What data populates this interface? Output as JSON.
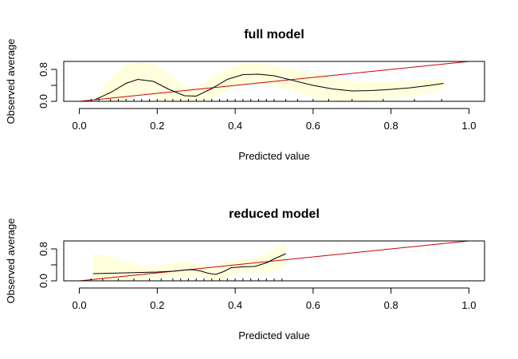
{
  "colors": {
    "band": "#ffffdd",
    "smooth": "#000000",
    "diagonal": "#cc0000",
    "axis": "#000000"
  },
  "chart_data": [
    {
      "type": "line",
      "title": "full model",
      "xlabel": "Predicted value",
      "ylabel": "Observed average",
      "xlim": [
        -0.04,
        1.04
      ],
      "ylim": [
        0,
        1
      ],
      "xticks": [
        0.0,
        0.2,
        0.4,
        0.6,
        0.8,
        1.0
      ],
      "xtick_labels": [
        "0.0",
        "0.2",
        "0.4",
        "0.6",
        "0.8",
        "1.0"
      ],
      "yticks": [
        0.0,
        0.4,
        0.8
      ],
      "ytick_labels": [
        "0.0",
        "0.8"
      ],
      "grid": false,
      "smooth": {
        "x": [
          0.04,
          0.08,
          0.12,
          0.15,
          0.19,
          0.23,
          0.27,
          0.3,
          0.34,
          0.38,
          0.42,
          0.46,
          0.5,
          0.55,
          0.6,
          0.65,
          0.7,
          0.75,
          0.8,
          0.85,
          0.9,
          0.935
        ],
        "y": [
          0.04,
          0.22,
          0.45,
          0.55,
          0.5,
          0.3,
          0.14,
          0.13,
          0.32,
          0.55,
          0.67,
          0.68,
          0.64,
          0.52,
          0.4,
          0.31,
          0.26,
          0.27,
          0.3,
          0.34,
          0.4,
          0.45
        ]
      },
      "band": {
        "x": [
          0.04,
          0.08,
          0.12,
          0.15,
          0.19,
          0.23,
          0.27,
          0.3,
          0.34,
          0.38,
          0.42,
          0.46,
          0.5,
          0.55,
          0.6,
          0.65,
          0.7,
          0.75,
          0.8,
          0.85,
          0.9,
          0.935
        ],
        "upper": [
          0.05,
          0.6,
          0.92,
          0.98,
          0.95,
          0.7,
          0.38,
          0.32,
          0.6,
          0.84,
          0.94,
          0.95,
          0.9,
          0.82,
          0.72,
          0.6,
          0.52,
          0.5,
          0.5,
          0.52,
          0.55,
          0.57
        ],
        "lower": [
          0.0,
          0.0,
          0.05,
          0.18,
          0.12,
          0.0,
          0.0,
          0.0,
          0.05,
          0.28,
          0.42,
          0.45,
          0.38,
          0.25,
          0.1,
          0.02,
          0.0,
          0.02,
          0.06,
          0.12,
          0.2,
          0.3
        ]
      },
      "diagonal": {
        "x": [
          -0.04,
          1.04
        ],
        "y": [
          -0.04,
          1.04
        ]
      },
      "rug": [
        0.03,
        0.05,
        0.08,
        0.1,
        0.12,
        0.14,
        0.16,
        0.18,
        0.2,
        0.22,
        0.24,
        0.26,
        0.28,
        0.3,
        0.32,
        0.34,
        0.36,
        0.38,
        0.4,
        0.42,
        0.44,
        0.46,
        0.48,
        0.5,
        0.53,
        0.56,
        0.6,
        0.64,
        0.7,
        0.78,
        0.86,
        0.93
      ]
    },
    {
      "type": "line",
      "title": "reduced model",
      "xlabel": "Predicted value",
      "ylabel": "Observed average",
      "xlim": [
        -0.04,
        1.04
      ],
      "ylim": [
        0,
        1
      ],
      "xticks": [
        0.0,
        0.2,
        0.4,
        0.6,
        0.8,
        1.0
      ],
      "xtick_labels": [
        "0.0",
        "0.2",
        "0.4",
        "0.6",
        "0.8",
        "1.0"
      ],
      "yticks": [
        0.0,
        0.4,
        0.8
      ],
      "ytick_labels": [
        "0.0",
        "0.8"
      ],
      "grid": false,
      "smooth": {
        "x": [
          0.035,
          0.08,
          0.12,
          0.16,
          0.2,
          0.24,
          0.27,
          0.29,
          0.31,
          0.33,
          0.35,
          0.37,
          0.39,
          0.42,
          0.45,
          0.48,
          0.5,
          0.53
        ],
        "y": [
          0.18,
          0.19,
          0.2,
          0.21,
          0.22,
          0.24,
          0.27,
          0.28,
          0.25,
          0.19,
          0.16,
          0.23,
          0.33,
          0.35,
          0.36,
          0.45,
          0.55,
          0.68
        ]
      },
      "band": {
        "x": [
          0.035,
          0.08,
          0.12,
          0.16,
          0.2,
          0.24,
          0.27,
          0.29,
          0.31,
          0.33,
          0.35,
          0.37,
          0.39,
          0.42,
          0.45,
          0.48,
          0.5,
          0.53
        ],
        "upper": [
          0.7,
          0.6,
          0.48,
          0.38,
          0.36,
          0.45,
          0.5,
          0.46,
          0.4,
          0.36,
          0.38,
          0.45,
          0.5,
          0.52,
          0.56,
          0.66,
          0.8,
          0.97
        ],
        "lower": [
          0.0,
          0.0,
          0.0,
          0.05,
          0.08,
          0.06,
          0.06,
          0.1,
          0.1,
          0.04,
          0.0,
          0.04,
          0.14,
          0.2,
          0.2,
          0.2,
          0.25,
          0.35
        ]
      },
      "diagonal": {
        "x": [
          -0.04,
          1.04
        ],
        "y": [
          -0.04,
          1.04
        ]
      },
      "rug": [
        0.03,
        0.06,
        0.1,
        0.14,
        0.18,
        0.21,
        0.24,
        0.26,
        0.28,
        0.3,
        0.32,
        0.34,
        0.36,
        0.38,
        0.4,
        0.42,
        0.44,
        0.46,
        0.48,
        0.5,
        0.52
      ]
    }
  ]
}
